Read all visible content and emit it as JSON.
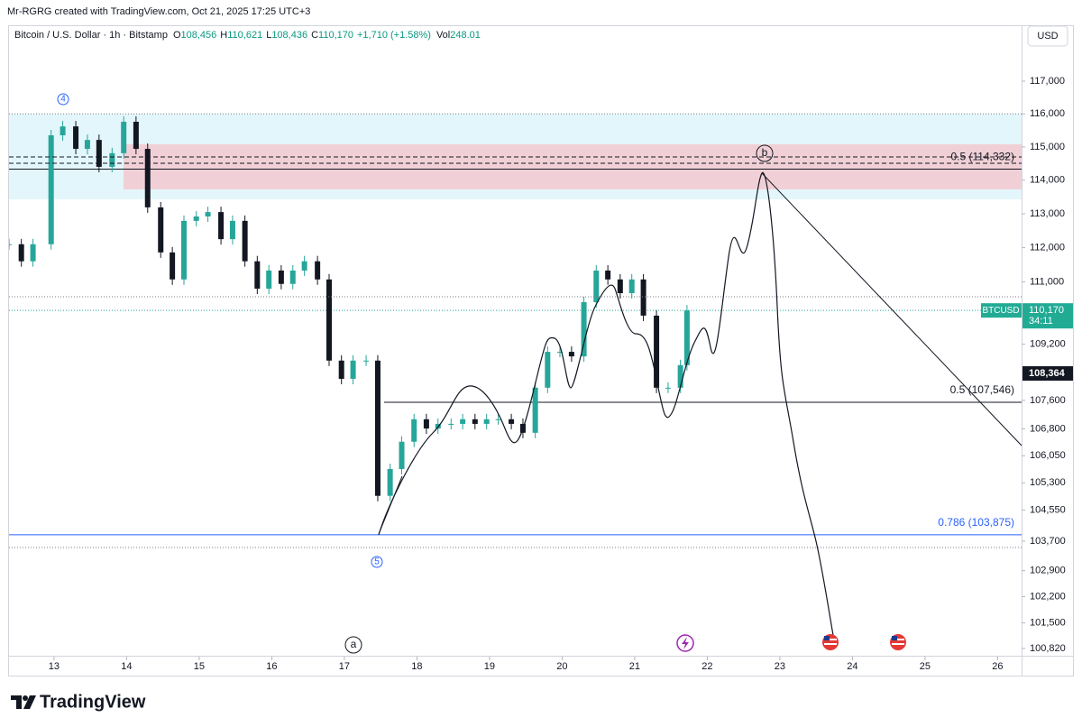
{
  "credit": "Mr-RGRG created with TradingView.com, Oct 21, 2025 17:25 UTC+3",
  "brand": "TradingView",
  "chart_data": {
    "type": "candlestick",
    "symbol": "Bitcoin / U.S. Dollar · 1h · Bitstamp",
    "ohlc": [
      {
        "label": "O",
        "value": "108,456"
      },
      {
        "label": "H",
        "value": "110,621"
      },
      {
        "label": "L",
        "value": "108,436"
      },
      {
        "label": "C",
        "value": "110,170"
      }
    ],
    "change": "+1,710 (+1.58%)",
    "volume": {
      "label": "Vol",
      "value": "248.01"
    },
    "currency": "USD",
    "up_color": "#26a69a",
    "down_color": "#131722",
    "log": true,
    "xlim": [
      12.38,
      26.33
    ],
    "xticks": [
      13,
      14,
      15,
      16,
      17,
      18,
      19,
      20,
      21,
      22,
      23,
      24,
      25,
      26
    ],
    "ylim": [
      100130,
      118392
    ],
    "yticks": [
      {
        "value": 117000,
        "label": "117,000"
      },
      {
        "value": 116000,
        "label": "116,000"
      },
      {
        "value": 115000,
        "label": "115,000"
      },
      {
        "value": 114000,
        "label": "114,000"
      },
      {
        "value": 113000,
        "label": "113,000"
      },
      {
        "value": 112000,
        "label": "112,000"
      },
      {
        "value": 111000,
        "label": "111,000"
      },
      {
        "value": 109200,
        "label": "109,200"
      },
      {
        "value": 107600,
        "label": "107,600"
      },
      {
        "value": 106800,
        "label": "106,800"
      },
      {
        "value": 106050,
        "label": "106,050"
      },
      {
        "value": 105300,
        "label": "105,300"
      },
      {
        "value": 104550,
        "label": "104,550"
      },
      {
        "value": 103700,
        "label": "103,700"
      },
      {
        "value": 102900,
        "label": "102,900"
      },
      {
        "value": 102200,
        "label": "102,200"
      },
      {
        "value": 101500,
        "label": "101,500"
      },
      {
        "value": 100820,
        "label": "100,820"
      }
    ],
    "x": [
      12.38,
      12.55,
      12.71,
      12.96,
      13.12,
      13.3,
      13.46,
      13.62,
      13.8,
      13.96,
      14.13,
      14.29,
      14.47,
      14.63,
      14.79,
      14.96,
      15.12,
      15.3,
      15.46,
      15.63,
      15.8,
      15.96,
      16.13,
      16.29,
      16.45,
      16.63,
      16.79,
      16.96,
      17.12,
      17.3,
      17.46,
      17.63,
      17.79,
      17.96,
      18.13,
      18.29,
      18.47,
      18.63,
      18.8,
      18.96,
      19.12,
      19.3,
      19.46,
      19.63,
      19.8,
      19.97,
      20.13,
      20.3,
      20.47,
      20.63,
      20.8,
      20.96,
      21.12,
      21.3,
      21.46,
      21.63,
      21.72
    ],
    "close": [
      112100,
      111600,
      112100,
      115350,
      115620,
      114940,
      115210,
      114400,
      114810,
      115760,
      114940,
      113190,
      111860,
      111070,
      112790,
      112920,
      113050,
      112250,
      112790,
      111600,
      110800,
      111330,
      110940,
      111330,
      111600,
      111070,
      108730,
      108210,
      108730,
      108730,
      104940,
      105680,
      106440,
      107070,
      106810,
      106940,
      106940,
      107070,
      106940,
      107070,
      107070,
      106940,
      106690,
      107960,
      108980,
      108980,
      108850,
      110410,
      111330,
      111070,
      110670,
      111070,
      110020,
      107960,
      107960,
      108600,
      110170
    ],
    "price_tag": {
      "symbol": "BTCUSD",
      "value": {
        "value": 110170,
        "label": "110,170"
      },
      "countdown": "34:11",
      "color": "#22ab94"
    },
    "marker_tag": {
      "value": 108364,
      "label": "108,364"
    },
    "fib_levels": [
      {
        "value": 114332,
        "label": "0.5 (114,332)",
        "color": "#131722"
      },
      {
        "value": 107546,
        "label": "0.5 (107,546)",
        "color": "#131722"
      },
      {
        "value": 103875,
        "label": "0.786 (103,875)",
        "color": "#2962ff"
      }
    ],
    "zones": [
      {
        "low": 113430,
        "high": 116000,
        "color": "#e3f6fb"
      },
      {
        "low": 113725,
        "high": 115080,
        "color": "#f0d0d6"
      }
    ],
    "wave_labels": [
      "4",
      "5",
      "b",
      "a"
    ]
  }
}
